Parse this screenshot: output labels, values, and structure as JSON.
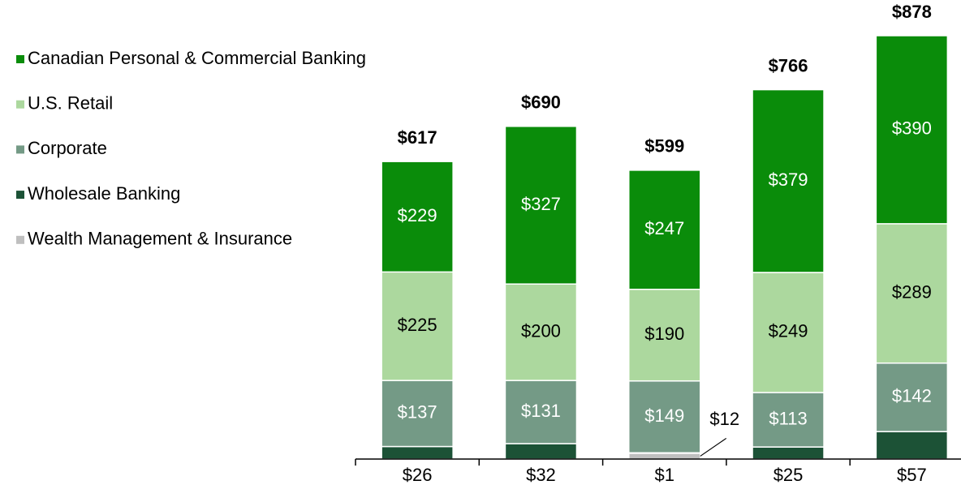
{
  "chart_data": {
    "type": "stacked_bar",
    "categories": [
      null,
      null,
      null,
      null,
      null
    ],
    "series": [
      {
        "name": "Canadian Personal & Commercial Banking",
        "color": "#0a8c0a",
        "values": [
          229,
          327,
          247,
          379,
          390
        ],
        "value_labels": [
          "$229",
          "$327",
          "$247",
          "$379",
          "$390"
        ]
      },
      {
        "name": "U.S. Retail",
        "color": "#acd89e",
        "values": [
          225,
          200,
          190,
          249,
          289
        ],
        "value_labels": [
          "$225",
          "$200",
          "$190",
          "$249",
          "$289"
        ]
      },
      {
        "name": "Corporate",
        "color": "#749a86",
        "values": [
          137,
          131,
          149,
          113,
          142
        ],
        "value_labels": [
          "$137",
          "$131",
          "$149",
          "$113",
          "$142"
        ]
      },
      {
        "name": "Wholesale Banking",
        "color": "#1c5236",
        "values": [
          26,
          32,
          1,
          25,
          57
        ],
        "value_labels": [
          "$26",
          "$32",
          "$1",
          "$25",
          "$57"
        ]
      },
      {
        "name": "Wealth Management & Insurance",
        "color": "#bfbfbf",
        "values": [
          0,
          0,
          12,
          0,
          0
        ],
        "value_labels": [
          null,
          null,
          "$12",
          null,
          null
        ]
      }
    ],
    "total_labels": [
      "$617",
      "$690",
      "$599",
      "$766",
      "$878"
    ]
  }
}
